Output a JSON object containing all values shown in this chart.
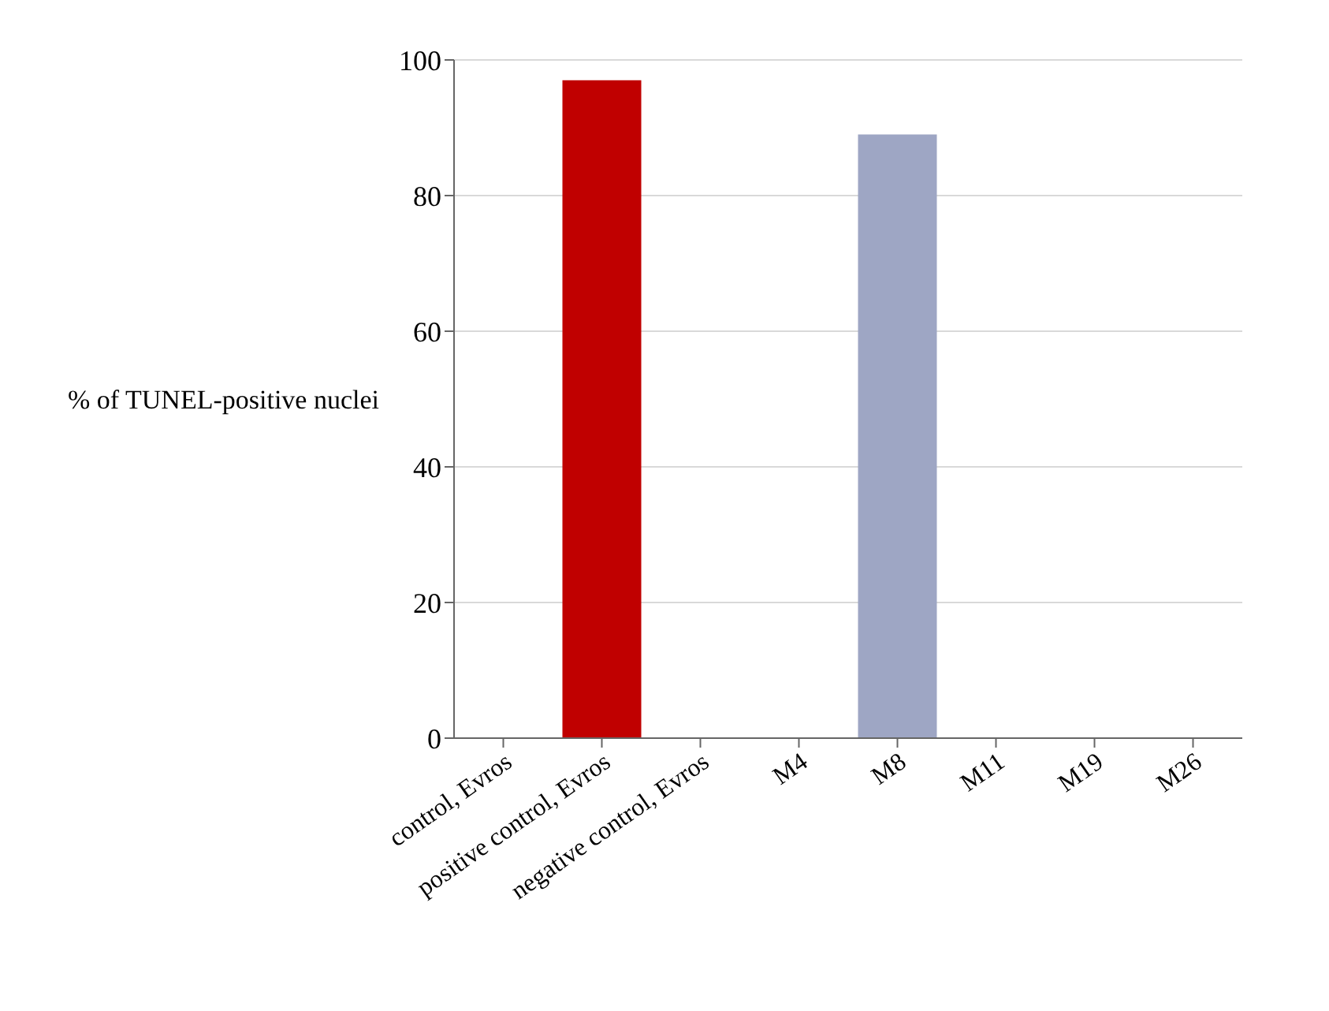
{
  "chart_data": {
    "type": "bar",
    "ylabel": "% of TUNEL-positive nuclei",
    "categories": [
      "control, Evros",
      "positive control, Evros",
      "negative control, Evros",
      "M4",
      "M8",
      "M11",
      "M19",
      "M26"
    ],
    "values": [
      0,
      97,
      0,
      0,
      89,
      0,
      0,
      0
    ],
    "colors": [
      "#000000",
      "#c00000",
      "#a0a0a0",
      "#8aaa78",
      "#9ea6c4",
      "#d8c070",
      "#1f3a6e",
      "#d08010"
    ],
    "ylim": [
      0,
      100
    ],
    "yticks": [
      0,
      20,
      40,
      60,
      80,
      100
    ],
    "grid": "y"
  }
}
